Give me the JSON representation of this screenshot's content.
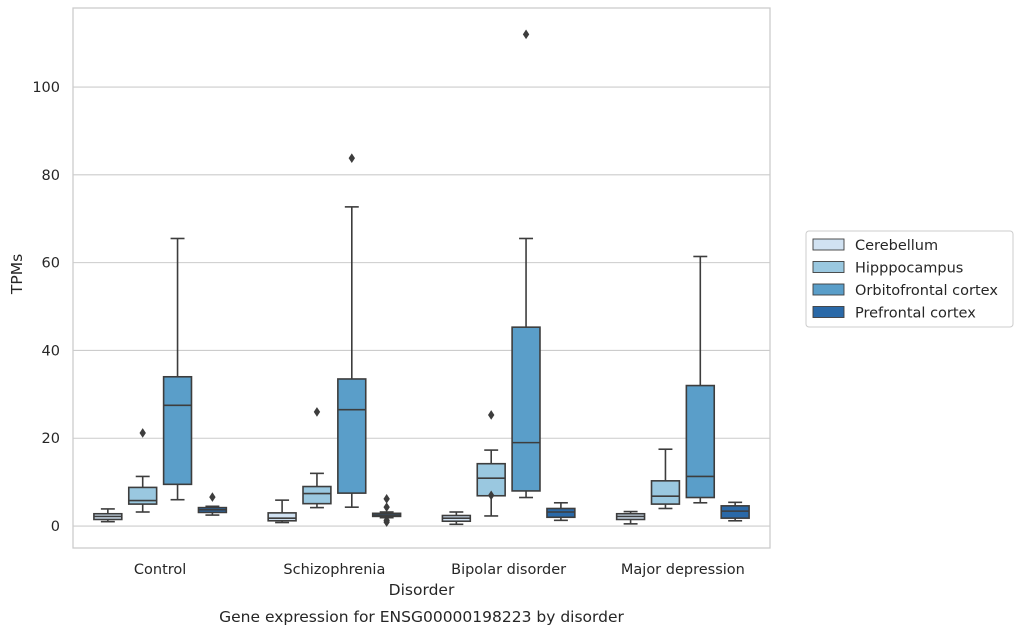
{
  "chart_data": {
    "type": "box",
    "title": "",
    "caption": "Gene expression for ENSG00000198223 by disorder",
    "xlabel": "Disorder",
    "ylabel": "TPMs",
    "ylim": [
      -5,
      118
    ],
    "yticks": [
      0,
      20,
      40,
      60,
      80,
      100
    ],
    "grid": "horizontal",
    "legend_position": "right",
    "categories": [
      "Control",
      "Schizophrenia",
      "Bipolar disorder",
      "Major depression"
    ],
    "series": [
      {
        "name": "Cerebellum",
        "color": "#d1e2f2",
        "boxes": [
          {
            "whislo": 1.0,
            "q1": 1.5,
            "med": 2.2,
            "q3": 2.8,
            "whishi": 3.9,
            "fliers": []
          },
          {
            "whislo": 0.8,
            "q1": 1.2,
            "med": 1.8,
            "q3": 3.0,
            "whishi": 5.9,
            "fliers": []
          },
          {
            "whislo": 0.4,
            "q1": 1.1,
            "med": 1.8,
            "q3": 2.4,
            "whishi": 3.2,
            "fliers": []
          },
          {
            "whislo": 0.5,
            "q1": 1.5,
            "med": 2.2,
            "q3": 2.8,
            "whishi": 3.3,
            "fliers": []
          }
        ]
      },
      {
        "name": "Hipppocampus",
        "color": "#9ac8e0",
        "boxes": [
          {
            "whislo": 3.2,
            "q1": 5.0,
            "med": 5.8,
            "q3": 8.8,
            "whishi": 11.3,
            "fliers": [
              21.2
            ]
          },
          {
            "whislo": 4.2,
            "q1": 5.1,
            "med": 7.4,
            "q3": 9.0,
            "whishi": 12.0,
            "fliers": [
              26.0
            ]
          },
          {
            "whislo": 2.3,
            "q1": 6.9,
            "med": 10.9,
            "q3": 14.2,
            "whishi": 17.3,
            "fliers": [
              7.0,
              25.3
            ]
          },
          {
            "whislo": 4.0,
            "q1": 5.0,
            "med": 6.8,
            "q3": 10.3,
            "whishi": 17.5,
            "fliers": []
          }
        ]
      },
      {
        "name": "Orbitofrontal cortex",
        "color": "#5a9ec9",
        "boxes": [
          {
            "whislo": 6.0,
            "q1": 9.5,
            "med": 27.5,
            "q3": 34.0,
            "whishi": 65.5,
            "fliers": []
          },
          {
            "whislo": 4.3,
            "q1": 7.5,
            "med": 26.5,
            "q3": 33.5,
            "whishi": 72.7,
            "fliers": [
              83.8
            ]
          },
          {
            "whislo": 6.5,
            "q1": 8.0,
            "med": 19.0,
            "q3": 45.3,
            "whishi": 65.5,
            "fliers": [
              112.0
            ]
          },
          {
            "whislo": 5.3,
            "q1": 6.5,
            "med": 11.3,
            "q3": 32.0,
            "whishi": 61.4,
            "fliers": []
          }
        ]
      },
      {
        "name": "Prefrontal cortex",
        "color": "#2a69a8",
        "boxes": [
          {
            "whislo": 2.5,
            "q1": 3.1,
            "med": 3.7,
            "q3": 4.2,
            "whishi": 4.5,
            "fliers": [
              6.6
            ]
          },
          {
            "whislo": 1.9,
            "q1": 2.2,
            "med": 2.5,
            "q3": 2.9,
            "whishi": 3.2,
            "fliers": [
              6.2,
              4.3,
              1.3,
              0.9
            ]
          },
          {
            "whislo": 1.3,
            "q1": 2.0,
            "med": 3.2,
            "q3": 4.0,
            "whishi": 5.3,
            "fliers": []
          },
          {
            "whislo": 1.2,
            "q1": 1.8,
            "med": 3.4,
            "q3": 4.6,
            "whishi": 5.4,
            "fliers": []
          }
        ]
      }
    ]
  }
}
